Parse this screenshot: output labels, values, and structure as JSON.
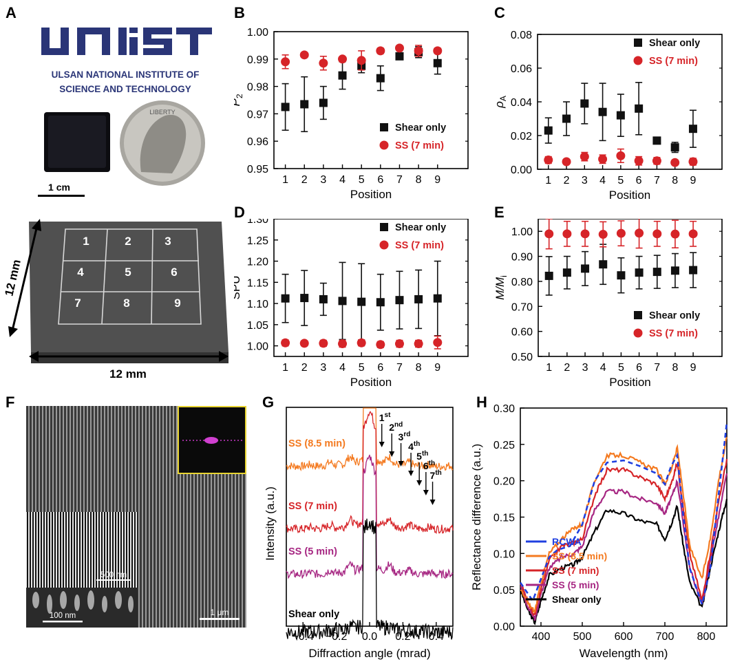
{
  "panel_letters": [
    "A",
    "B",
    "C",
    "D",
    "E",
    "F",
    "G",
    "H"
  ],
  "panel_a": {
    "logo_text": "UNIST",
    "institute_line1": "ULSAN NATIONAL INSTITUTE OF",
    "institute_line2": "SCIENCE AND TECHNOLOGY",
    "coin_text": "LIBERTY",
    "scale_label": "1 cm",
    "grid_numbers": [
      "1",
      "2",
      "3",
      "4",
      "5",
      "6",
      "7",
      "8",
      "9"
    ],
    "dim_vertical": "12 mm",
    "dim_horizontal": "12 mm"
  },
  "panel_f": {
    "scale_main": "1 μm",
    "scale_inset1": "500 nm",
    "scale_inset2": "100 nm"
  },
  "colors": {
    "shear": "#111111",
    "ss": "#d62428"
  },
  "chart_data": [
    {
      "id": "B",
      "type": "scatter",
      "xlabel": "Position",
      "ylabel": "P2",
      "ylabel_main": "P",
      "ylabel_sub": "2",
      "ylim": [
        0.95,
        1.0
      ],
      "yticks": [
        "0.95",
        "0.96",
        "0.97",
        "0.98",
        "0.99",
        "1.00"
      ],
      "x": [
        1,
        2,
        3,
        4,
        5,
        6,
        7,
        8,
        9
      ],
      "legend": [
        "Shear only",
        "SS (7 min)"
      ],
      "legend_position": "bottom-right",
      "series": [
        {
          "name": "Shear only",
          "marker": "square",
          "values": [
            0.9725,
            0.9735,
            0.974,
            0.984,
            0.9875,
            0.983,
            0.991,
            0.9925,
            0.9885
          ],
          "errors": [
            0.0085,
            0.01,
            0.006,
            0.005,
            0.0025,
            0.0045,
            0.001,
            0.002,
            0.004
          ]
        },
        {
          "name": "SS (7 min)",
          "marker": "circle",
          "values": [
            0.989,
            0.9915,
            0.9885,
            0.99,
            0.9895,
            0.993,
            0.994,
            0.993,
            0.993
          ],
          "errors": [
            0.0025,
            0.0005,
            0.0025,
            0.0005,
            0.0035,
            0.001,
            0.0008,
            0.002,
            0.001
          ]
        }
      ]
    },
    {
      "id": "C",
      "type": "scatter",
      "xlabel": "Position",
      "ylabel": "ρA",
      "ylabel_main": "ρ",
      "ylabel_sub": "A",
      "ylim": [
        0.0,
        0.08
      ],
      "yticks": [
        "0.00",
        "0.02",
        "0.04",
        "0.06",
        "0.08"
      ],
      "x": [
        1,
        2,
        3,
        4,
        5,
        6,
        7,
        8,
        9
      ],
      "legend": [
        "Shear only",
        "SS (7 min)"
      ],
      "legend_position": "top-right",
      "series": [
        {
          "name": "Shear only",
          "marker": "square",
          "values": [
            0.023,
            0.03,
            0.039,
            0.034,
            0.032,
            0.036,
            0.017,
            0.013,
            0.024
          ],
          "errors": [
            0.0075,
            0.01,
            0.012,
            0.017,
            0.0125,
            0.0155,
            0.002,
            0.003,
            0.011
          ]
        },
        {
          "name": "SS (7 min)",
          "marker": "circle",
          "values": [
            0.0055,
            0.0045,
            0.0075,
            0.006,
            0.008,
            0.005,
            0.005,
            0.004,
            0.0045
          ],
          "errors": [
            0.002,
            0.001,
            0.0025,
            0.0025,
            0.004,
            0.0025,
            0.002,
            0.001,
            0.002
          ]
        }
      ]
    },
    {
      "id": "D",
      "type": "scatter",
      "xlabel": "Position",
      "ylabel": "SPU",
      "ylim": [
        0.975,
        1.3
      ],
      "yticks": [
        "1.00",
        "1.05",
        "1.10",
        "1.15",
        "1.20",
        "1.25",
        "1.30"
      ],
      "x": [
        1,
        2,
        3,
        4,
        5,
        6,
        7,
        8,
        9
      ],
      "legend": [
        "Shear only",
        "SS (7 min)"
      ],
      "legend_position": "top-right",
      "series": [
        {
          "name": "Shear only",
          "marker": "square",
          "values": [
            1.112,
            1.113,
            1.11,
            1.106,
            1.104,
            1.103,
            1.108,
            1.11,
            1.112
          ],
          "errors": [
            0.057,
            0.065,
            0.038,
            0.091,
            0.09,
            0.066,
            0.068,
            0.069,
            0.088
          ]
        },
        {
          "name": "SS (7 min)",
          "marker": "circle",
          "values": [
            1.007,
            1.006,
            1.006,
            1.005,
            1.007,
            1.003,
            1.005,
            1.005,
            1.008
          ],
          "errors": [
            0.007,
            0.006,
            0.007,
            0.008,
            0.007,
            0.007,
            0.008,
            0.008,
            0.015
          ]
        }
      ]
    },
    {
      "id": "E",
      "type": "scatter",
      "xlabel": "Position",
      "ylabel": "M/Mi",
      "ylabel_main": "M/M",
      "ylabel_sub": "i",
      "ylim": [
        0.5,
        1.05
      ],
      "yticks": [
        "0.50",
        "0.60",
        "0.70",
        "0.80",
        "0.90",
        "1.00"
      ],
      "x": [
        1,
        2,
        3,
        4,
        5,
        6,
        7,
        8,
        9
      ],
      "legend": [
        "Shear only",
        "SS (7 min)"
      ],
      "legend_position": "bottom-right",
      "series": [
        {
          "name": "Shear only",
          "marker": "square",
          "values": [
            0.822,
            0.835,
            0.851,
            0.868,
            0.824,
            0.835,
            0.838,
            0.843,
            0.845
          ],
          "errors": [
            0.077,
            0.065,
            0.068,
            0.08,
            0.07,
            0.065,
            0.066,
            0.068,
            0.07
          ]
        },
        {
          "name": "SS (7 min)",
          "marker": "circle",
          "values": [
            0.99,
            0.99,
            0.99,
            0.988,
            0.992,
            0.993,
            0.99,
            0.989,
            0.99
          ],
          "errors": [
            0.06,
            0.05,
            0.05,
            0.05,
            0.05,
            0.06,
            0.05,
            0.055,
            0.05
          ]
        }
      ]
    },
    {
      "id": "G",
      "type": "line",
      "xlabel": "Diffraction angle (mrad)",
      "ylabel": "Intensity (a.u.)",
      "xlim": [
        -0.5,
        0.5
      ],
      "xticks": [
        "-0.4",
        "-0.2",
        "0.0",
        "0.2",
        "0.4"
      ],
      "series_labels": [
        "SS (8.5 min)",
        "SS (7 min)",
        "SS (5 min)",
        "Shear only"
      ],
      "series_colors": [
        "#f47a20",
        "#d62428",
        "#a62682",
        "#000000"
      ],
      "series_offsets": [
        3.0,
        2.0,
        1.0,
        0.0
      ],
      "order_labels": [
        {
          "n": "1",
          "sup": "st"
        },
        {
          "n": "2",
          "sup": "nd"
        },
        {
          "n": "3",
          "sup": "rd"
        },
        {
          "n": "4",
          "sup": "th"
        },
        {
          "n": "5",
          "sup": "th"
        },
        {
          "n": "6",
          "sup": "th"
        },
        {
          "n": "7",
          "sup": "th"
        }
      ],
      "order_positions": [
        0.065,
        0.125,
        0.18,
        0.24,
        0.29,
        0.33,
        0.37
      ]
    },
    {
      "id": "H",
      "type": "line",
      "xlabel": "Wavelength (nm)",
      "ylabel": "Reflectance difference (a.u.)",
      "xlim": [
        350,
        850
      ],
      "ylim": [
        0.0,
        0.3
      ],
      "xticks": [
        "400",
        "500",
        "600",
        "700",
        "800"
      ],
      "yticks": [
        "0.00",
        "0.05",
        "0.10",
        "0.15",
        "0.20",
        "0.25",
        "0.30"
      ],
      "legend": [
        "RCWA",
        "SS (8.5 min)",
        "SS (7 min)",
        "SS (5 min)",
        "Shear only"
      ],
      "legend_colors": [
        "#1f3fe0",
        "#f47a20",
        "#d62428",
        "#a62682",
        "#000000"
      ],
      "series": [
        {
          "name": "RCWA",
          "style": "dashed",
          "x": [
            350,
            380,
            400,
            420,
            440,
            470,
            500,
            530,
            560,
            600,
            640,
            680,
            700,
            715,
            730,
            745,
            760,
            790,
            810,
            830,
            850
          ],
          "y": [
            0.06,
            0.035,
            0.065,
            0.095,
            0.105,
            0.11,
            0.14,
            0.2,
            0.225,
            0.228,
            0.22,
            0.21,
            0.195,
            0.22,
            0.235,
            0.15,
            0.08,
            0.03,
            0.08,
            0.18,
            0.28
          ]
        },
        {
          "name": "SS (8.5 min)",
          "style": "solid",
          "x": [
            350,
            370,
            385,
            400,
            420,
            450,
            480,
            500,
            530,
            560,
            600,
            640,
            680,
            700,
            715,
            730,
            745,
            760,
            790,
            810,
            830,
            850
          ],
          "y": [
            0.05,
            0.03,
            0.02,
            0.06,
            0.1,
            0.12,
            0.135,
            0.14,
            0.2,
            0.235,
            0.235,
            0.225,
            0.215,
            0.195,
            0.215,
            0.245,
            0.18,
            0.11,
            0.065,
            0.12,
            0.2,
            0.26
          ]
        },
        {
          "name": "SS (7 min)",
          "style": "solid",
          "x": [
            350,
            370,
            385,
            400,
            420,
            450,
            480,
            500,
            530,
            560,
            600,
            640,
            680,
            700,
            715,
            730,
            745,
            760,
            790,
            810,
            830,
            850
          ],
          "y": [
            0.06,
            0.03,
            0.015,
            0.05,
            0.09,
            0.11,
            0.115,
            0.12,
            0.18,
            0.215,
            0.215,
            0.205,
            0.195,
            0.175,
            0.195,
            0.225,
            0.16,
            0.1,
            0.035,
            0.1,
            0.17,
            0.23
          ]
        },
        {
          "name": "SS (5 min)",
          "style": "solid",
          "x": [
            350,
            370,
            385,
            400,
            420,
            450,
            480,
            500,
            530,
            560,
            600,
            640,
            680,
            700,
            715,
            730,
            745,
            760,
            790,
            810,
            830,
            850
          ],
          "y": [
            0.055,
            0.025,
            0.01,
            0.045,
            0.08,
            0.095,
            0.1,
            0.11,
            0.16,
            0.185,
            0.185,
            0.175,
            0.17,
            0.155,
            0.175,
            0.2,
            0.14,
            0.08,
            0.03,
            0.09,
            0.15,
            0.21
          ]
        },
        {
          "name": "Shear only",
          "style": "solid",
          "x": [
            350,
            370,
            385,
            400,
            420,
            450,
            480,
            500,
            530,
            560,
            600,
            640,
            680,
            700,
            715,
            730,
            745,
            760,
            790,
            810,
            830,
            850
          ],
          "y": [
            0.05,
            0.02,
            0.005,
            0.035,
            0.07,
            0.08,
            0.085,
            0.095,
            0.13,
            0.16,
            0.155,
            0.145,
            0.14,
            0.12,
            0.14,
            0.165,
            0.11,
            0.06,
            0.025,
            0.08,
            0.13,
            0.175
          ]
        }
      ]
    }
  ]
}
